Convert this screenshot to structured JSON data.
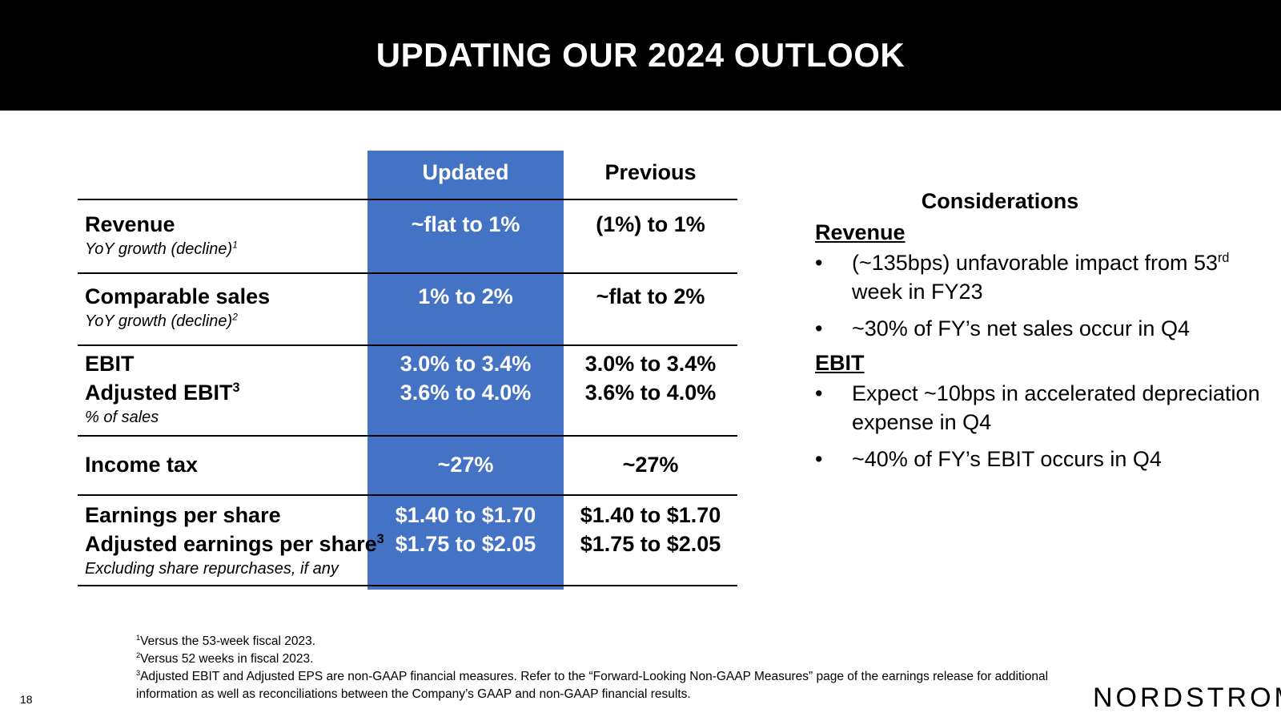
{
  "slide": {
    "title": "UPDATING OUR 2024 OUTLOOK",
    "page_number": "18",
    "logo": "NORDSTROM"
  },
  "table": {
    "headers": {
      "updated": "Updated",
      "previous": "Previous"
    },
    "rows": [
      {
        "label": "Revenue",
        "label_sup": "",
        "sub": "YoY growth (decline)",
        "sub_sup": "1",
        "updated": "~flat to 1%",
        "previous": "(1%) to 1%"
      },
      {
        "label": "Comparable sales",
        "label_sup": "",
        "sub": "YoY growth (decline)",
        "sub_sup": "2",
        "updated": "1% to 2%",
        "previous": "~flat to 2%"
      },
      {
        "label": "EBIT",
        "label2": "Adjusted EBIT",
        "label2_sup": "3",
        "sub": "% of sales",
        "updated": "3.0% to 3.4%",
        "updated2": "3.6% to 4.0%",
        "previous": "3.0% to 3.4%",
        "previous2": "3.6% to 4.0%"
      },
      {
        "label": "Income tax",
        "updated": "~27%",
        "previous": "~27%"
      },
      {
        "label": "Earnings per share",
        "label2": "Adjusted earnings per share",
        "label2_sup": "3",
        "sub": "Excluding share repurchases, if any",
        "updated": "$1.40 to $1.70",
        "updated2": "$1.75 to $2.05",
        "previous": "$1.40 to $1.70",
        "previous2": "$1.75 to $2.05"
      }
    ]
  },
  "considerations": {
    "title": "Considerations",
    "sections": [
      {
        "heading": "Revenue",
        "bullets": [
          {
            "pre": "(~135bps) unfavorable impact from 53",
            "sup": "rd",
            "post": " week in FY23"
          },
          {
            "pre": "~30% of FY’s net sales occur in Q4"
          }
        ]
      },
      {
        "heading": "EBIT",
        "bullets": [
          {
            "pre": "Expect ~10bps in accelerated depreciation expense in Q4"
          },
          {
            "pre": "~40% of FY’s EBIT occurs in Q4"
          }
        ]
      }
    ],
    "bullet_char": "•"
  },
  "footnotes": [
    {
      "num": "1",
      "text": "Versus the 53-week fiscal 2023."
    },
    {
      "num": "2",
      "text": "Versus 52 weeks in fiscal 2023."
    },
    {
      "num": "3",
      "text": "Adjusted EBIT and Adjusted EPS are non-GAAP financial measures. Refer to the “Forward-Looking Non-GAAP Measures” page of the earnings release for additional information as well as reconciliations between the Company’s GAAP and non-GAAP financial results."
    }
  ],
  "colors": {
    "header_bg": "#000000",
    "updated_column": "#4472c4"
  }
}
